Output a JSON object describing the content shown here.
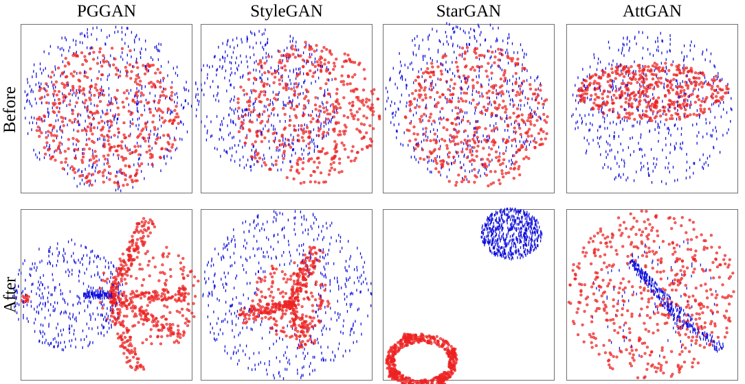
{
  "columns": [
    "PGGAN",
    "StyleGAN",
    "StarGAN",
    "AttGAN"
  ],
  "rows": [
    "Before",
    "After"
  ],
  "colors": {
    "real": "#ee2222",
    "fake": "#1010dd"
  },
  "marker": {
    "red": "circle",
    "blue": "tick"
  },
  "chart_data": [
    {
      "type": "scatter",
      "title": "PGGAN",
      "row": "Before",
      "xlim": [
        -1,
        1
      ],
      "ylim": [
        -1,
        1
      ],
      "axes_visible": false,
      "series": [
        {
          "color": "#ee2222",
          "marker": "circle",
          "clusters": [
            {
              "shape": "disk",
              "center": [
                0.0,
                -0.1
              ],
              "r": 0.85,
              "n": 480
            }
          ]
        },
        {
          "color": "#1010dd",
          "marker": "tick",
          "clusters": [
            {
              "shape": "disk",
              "center": [
                0.0,
                0.0
              ],
              "r": 1.0,
              "n": 480
            }
          ]
        }
      ]
    },
    {
      "type": "scatter",
      "title": "StyleGAN",
      "row": "Before",
      "xlim": [
        -1,
        1
      ],
      "ylim": [
        -1,
        1
      ],
      "axes_visible": false,
      "series": [
        {
          "color": "#ee2222",
          "marker": "circle",
          "clusters": [
            {
              "shape": "disk",
              "center": [
                0.25,
                -0.05
              ],
              "r": 0.85,
              "n": 480
            }
          ]
        },
        {
          "color": "#1010dd",
          "marker": "tick",
          "clusters": [
            {
              "shape": "disk",
              "center": [
                -0.25,
                0.1
              ],
              "r": 0.85,
              "n": 480
            }
          ]
        }
      ]
    },
    {
      "type": "scatter",
      "title": "StarGAN",
      "row": "Before",
      "xlim": [
        -1,
        1
      ],
      "ylim": [
        -1,
        1
      ],
      "axes_visible": false,
      "series": [
        {
          "color": "#ee2222",
          "marker": "circle",
          "clusters": [
            {
              "shape": "disk",
              "center": [
                0.1,
                -0.1
              ],
              "r": 0.85,
              "n": 480
            }
          ]
        },
        {
          "color": "#1010dd",
          "marker": "tick",
          "clusters": [
            {
              "shape": "disk",
              "center": [
                -0.05,
                0.1
              ],
              "r": 0.95,
              "n": 480
            }
          ]
        }
      ]
    },
    {
      "type": "scatter",
      "title": "AttGAN",
      "row": "Before",
      "xlim": [
        -1,
        1
      ],
      "ylim": [
        -1,
        1
      ],
      "axes_visible": false,
      "series": [
        {
          "color": "#ee2222",
          "marker": "circle",
          "clusters": [
            {
              "shape": "ellipse",
              "center": [
                0.0,
                0.2
              ],
              "rx": 0.9,
              "ry": 0.35,
              "n": 480
            }
          ]
        },
        {
          "color": "#1010dd",
          "marker": "tick",
          "clusters": [
            {
              "shape": "disk",
              "center": [
                0.0,
                0.0
              ],
              "r": 0.95,
              "n": 480
            }
          ]
        }
      ]
    },
    {
      "type": "scatter",
      "title": "PGGAN",
      "row": "After",
      "xlim": [
        -1,
        1
      ],
      "ylim": [
        -1,
        1
      ],
      "axes_visible": false,
      "series": [
        {
          "color": "#ee2222",
          "marker": "circle",
          "clusters": [
            {
              "shape": "disk",
              "center": [
                0.5,
                0.0
              ],
              "r": 0.6,
              "n": 180
            },
            {
              "shape": "ray",
              "from": [
                0.05,
                0.0
              ],
              "to": [
                0.5,
                0.9
              ],
              "spread": 0.08,
              "n": 120
            },
            {
              "shape": "ray",
              "from": [
                0.05,
                0.0
              ],
              "to": [
                0.95,
                0.0
              ],
              "spread": 0.06,
              "n": 80
            },
            {
              "shape": "ray",
              "from": [
                0.05,
                0.0
              ],
              "to": [
                0.9,
                -0.5
              ],
              "spread": 0.08,
              "n": 90
            },
            {
              "shape": "ray",
              "from": [
                0.05,
                0.0
              ],
              "to": [
                0.35,
                -0.95
              ],
              "spread": 0.08,
              "n": 100
            },
            {
              "shape": "disk",
              "center": [
                -0.95,
                -0.05
              ],
              "r": 0.05,
              "n": 12
            }
          ]
        },
        {
          "color": "#1010dd",
          "marker": "tick",
          "clusters": [
            {
              "shape": "disk",
              "center": [
                -0.45,
                0.0
              ],
              "r": 0.65,
              "n": 380
            },
            {
              "shape": "ellipse",
              "center": [
                -0.1,
                0.0
              ],
              "rx": 0.18,
              "ry": 0.05,
              "n": 110
            }
          ]
        }
      ]
    },
    {
      "type": "scatter",
      "title": "StyleGAN",
      "row": "After",
      "xlim": [
        -1,
        1
      ],
      "ylim": [
        -1,
        1
      ],
      "axes_visible": false,
      "series": [
        {
          "color": "#ee2222",
          "marker": "circle",
          "clusters": [
            {
              "shape": "disk",
              "center": [
                0.05,
                -0.05
              ],
              "r": 0.45,
              "n": 180
            },
            {
              "shape": "ray",
              "from": [
                0.05,
                -0.1
              ],
              "to": [
                0.35,
                0.55
              ],
              "spread": 0.08,
              "n": 110
            },
            {
              "shape": "ray",
              "from": [
                0.05,
                -0.1
              ],
              "to": [
                -0.55,
                -0.25
              ],
              "spread": 0.08,
              "n": 110
            },
            {
              "shape": "ray",
              "from": [
                0.05,
                -0.1
              ],
              "to": [
                0.25,
                -0.6
              ],
              "spread": 0.08,
              "n": 70
            }
          ]
        },
        {
          "color": "#1010dd",
          "marker": "tick",
          "clusters": [
            {
              "shape": "ring",
              "center": [
                0.0,
                0.0
              ],
              "r_in": 0.35,
              "r_out": 1.0,
              "n": 520
            }
          ]
        }
      ]
    },
    {
      "type": "scatter",
      "title": "StarGAN",
      "row": "After",
      "xlim": [
        -1,
        1
      ],
      "ylim": [
        -1,
        1
      ],
      "axes_visible": false,
      "series": [
        {
          "color": "#ee2222",
          "marker": "circle",
          "clusters": [
            {
              "shape": "ellipse_outline",
              "center": [
                -0.55,
                -0.78
              ],
              "rx": 0.37,
              "ry": 0.27,
              "thickness": 0.05,
              "n": 420
            },
            {
              "shape": "disk",
              "center": [
                -0.72,
                -0.51
              ],
              "r": 0.06,
              "n": 40
            },
            {
              "shape": "disk",
              "center": [
                -0.33,
                -1.02
              ],
              "r": 0.06,
              "n": 40
            },
            {
              "shape": "disk",
              "center": [
                -0.88,
                -0.94
              ],
              "r": 0.06,
              "n": 35
            },
            {
              "shape": "disk",
              "center": [
                -0.2,
                -0.68
              ],
              "r": 0.06,
              "n": 35
            }
          ]
        },
        {
          "color": "#1010dd",
          "marker": "tick",
          "clusters": [
            {
              "shape": "ellipse",
              "center": [
                0.5,
                0.72
              ],
              "rx": 0.36,
              "ry": 0.3,
              "n": 600
            }
          ]
        }
      ]
    },
    {
      "type": "scatter",
      "title": "AttGAN",
      "row": "After",
      "xlim": [
        -1,
        1
      ],
      "ylim": [
        -1,
        1
      ],
      "axes_visible": false,
      "series": [
        {
          "color": "#ee2222",
          "marker": "circle",
          "clusters": [
            {
              "shape": "disk",
              "center": [
                0.0,
                0.0
              ],
              "r": 1.0,
              "n": 520
            }
          ]
        },
        {
          "color": "#1010dd",
          "marker": "tick",
          "clusters": [
            {
              "shape": "ray",
              "from": [
                -0.25,
                0.4
              ],
              "to": [
                0.4,
                -0.35
              ],
              "spread": 0.07,
              "n": 260
            },
            {
              "shape": "ray",
              "from": [
                0.4,
                -0.35
              ],
              "to": [
                0.85,
                -0.65
              ],
              "spread": 0.06,
              "n": 70
            },
            {
              "shape": "disk",
              "center": [
                0.0,
                0.0
              ],
              "r": 0.75,
              "n": 90
            }
          ]
        }
      ]
    }
  ]
}
